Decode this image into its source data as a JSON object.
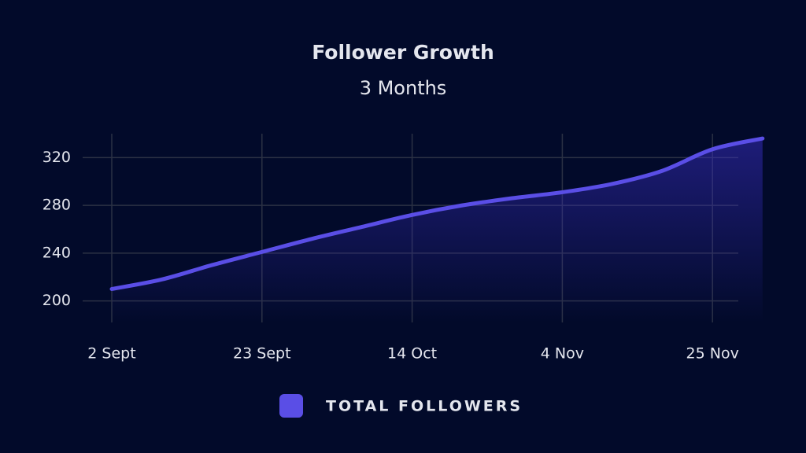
{
  "chart_data": {
    "type": "area",
    "title": "Follower Growth",
    "subtitle": "3 Months",
    "categories": [
      "2 Sept",
      null,
      null,
      "23 Sept",
      null,
      null,
      "14 Oct",
      null,
      null,
      "4 Nov",
      null,
      null,
      "25 Nov",
      null
    ],
    "series": [
      {
        "name": "TOTAL FOLLOWERS",
        "color": "#5a4ee6",
        "values": [
          210,
          218,
          230,
          241,
          252,
          262,
          272,
          280,
          286,
          291,
          298,
          309,
          327,
          336
        ]
      }
    ],
    "ylim": [
      182,
      340
    ],
    "yticks": [
      200,
      240,
      280,
      320
    ],
    "grid": true
  }
}
